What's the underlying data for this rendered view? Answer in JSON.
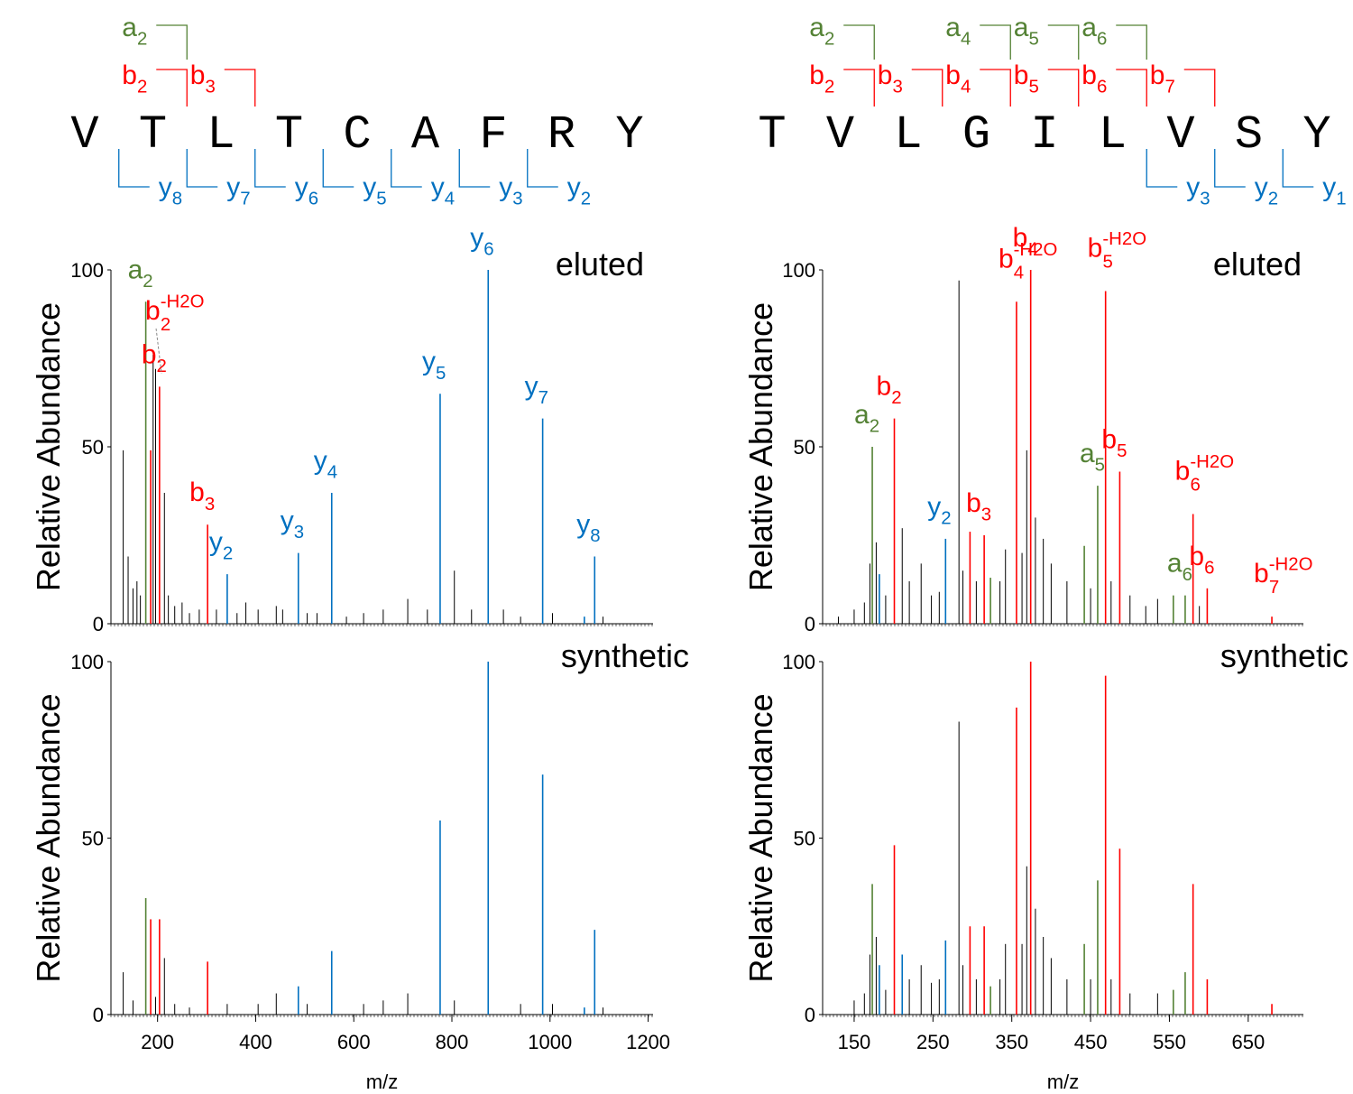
{
  "colors": {
    "a_ion": "#548235",
    "b_ion": "#ff0000",
    "y_ion": "#0070c0",
    "other_peak": "#000000",
    "axis": "#000000",
    "label": "#000000"
  },
  "panels": {
    "left": {
      "sequence": [
        "V",
        "T",
        "L",
        "T",
        "C",
        "A",
        "F",
        "R",
        "Y"
      ],
      "fragments": {
        "a": [
          {
            "sub": "2",
            "after": 2
          }
        ],
        "b": [
          {
            "sub": "2",
            "after": 2
          },
          {
            "sub": "3",
            "after": 3
          }
        ],
        "y": [
          {
            "sub": "8",
            "after": 1
          },
          {
            "sub": "7",
            "after": 2
          },
          {
            "sub": "6",
            "after": 3
          },
          {
            "sub": "5",
            "after": 4
          },
          {
            "sub": "4",
            "after": 5
          },
          {
            "sub": "3",
            "after": 6
          },
          {
            "sub": "2",
            "after": 7
          }
        ]
      }
    },
    "right": {
      "sequence": [
        "T",
        "V",
        "L",
        "G",
        "I",
        "L",
        "V",
        "S",
        "Y"
      ],
      "fragments": {
        "a": [
          {
            "sub": "2",
            "after": 2
          },
          {
            "sub": "4",
            "after": 4
          },
          {
            "sub": "5",
            "after": 5
          },
          {
            "sub": "6",
            "after": 6
          }
        ],
        "b": [
          {
            "sub": "2",
            "after": 2
          },
          {
            "sub": "3",
            "after": 3
          },
          {
            "sub": "4",
            "after": 4
          },
          {
            "sub": "5",
            "after": 5
          },
          {
            "sub": "6",
            "after": 6
          },
          {
            "sub": "7",
            "after": 7
          }
        ],
        "y": [
          {
            "sub": "3",
            "after": 6
          },
          {
            "sub": "2",
            "after": 7
          },
          {
            "sub": "1",
            "after": 8
          }
        ]
      }
    }
  },
  "chart_data": [
    {
      "type": "spectrum",
      "panel": "left",
      "title": "eluted",
      "ylabel": "Relative Abundance",
      "ylim": [
        0,
        100
      ],
      "yticks": [
        0,
        50,
        100
      ],
      "xlim": [
        105,
        1210
      ],
      "x_tick_labels": [],
      "peaks": [
        {
          "x": 130,
          "y": 49,
          "ion": "other"
        },
        {
          "x": 140,
          "y": 19,
          "ion": "other"
        },
        {
          "x": 150,
          "y": 10,
          "ion": "other"
        },
        {
          "x": 158,
          "y": 12,
          "ion": "other"
        },
        {
          "x": 165,
          "y": 8,
          "ion": "other"
        },
        {
          "x": 176,
          "y": 91,
          "ion": "a",
          "label": "a",
          "sub": "2"
        },
        {
          "x": 186,
          "y": 49,
          "ion": "b"
        },
        {
          "x": 191,
          "y": 76,
          "ion": "other"
        },
        {
          "x": 196,
          "y": 72,
          "ion": "other"
        },
        {
          "x": 204,
          "y": 67,
          "ion": "b",
          "label": "b",
          "sub": "2"
        },
        {
          "x": 214,
          "y": 37,
          "ion": "other"
        },
        {
          "x": 222,
          "y": 8,
          "ion": "other"
        },
        {
          "x": 235,
          "y": 5,
          "ion": "other"
        },
        {
          "x": 250,
          "y": 6,
          "ion": "other"
        },
        {
          "x": 265,
          "y": 3,
          "ion": "other"
        },
        {
          "x": 285,
          "y": 4,
          "ion": "other"
        },
        {
          "x": 302,
          "y": 28,
          "ion": "b",
          "label": "b",
          "sub": "3"
        },
        {
          "x": 320,
          "y": 4,
          "ion": "other"
        },
        {
          "x": 342,
          "y": 14,
          "ion": "y",
          "label": "y",
          "sub": "2"
        },
        {
          "x": 362,
          "y": 3,
          "ion": "other"
        },
        {
          "x": 380,
          "y": 6,
          "ion": "other"
        },
        {
          "x": 405,
          "y": 4,
          "ion": "other"
        },
        {
          "x": 442,
          "y": 5,
          "ion": "other"
        },
        {
          "x": 455,
          "y": 4,
          "ion": "other"
        },
        {
          "x": 487,
          "y": 20,
          "ion": "y",
          "label": "y",
          "sub": "3"
        },
        {
          "x": 505,
          "y": 3,
          "ion": "other"
        },
        {
          "x": 525,
          "y": 3,
          "ion": "other"
        },
        {
          "x": 555,
          "y": 37,
          "ion": "y",
          "label": "y",
          "sub": "4"
        },
        {
          "x": 585,
          "y": 2,
          "ion": "other"
        },
        {
          "x": 620,
          "y": 3,
          "ion": "other"
        },
        {
          "x": 660,
          "y": 4,
          "ion": "other"
        },
        {
          "x": 710,
          "y": 7,
          "ion": "other"
        },
        {
          "x": 750,
          "y": 4,
          "ion": "other"
        },
        {
          "x": 776,
          "y": 65,
          "ion": "y",
          "label": "y",
          "sub": "5"
        },
        {
          "x": 805,
          "y": 15,
          "ion": "other"
        },
        {
          "x": 840,
          "y": 4,
          "ion": "other"
        },
        {
          "x": 874,
          "y": 100,
          "ion": "y",
          "label": "y",
          "sub": "6"
        },
        {
          "x": 905,
          "y": 4,
          "ion": "other"
        },
        {
          "x": 940,
          "y": 2,
          "ion": "other"
        },
        {
          "x": 985,
          "y": 58,
          "ion": "y",
          "label": "y",
          "sub": "7"
        },
        {
          "x": 1005,
          "y": 3,
          "ion": "other"
        },
        {
          "x": 1070,
          "y": 2,
          "ion": "y"
        },
        {
          "x": 1091,
          "y": 19,
          "ion": "y",
          "label": "y",
          "sub": "8"
        },
        {
          "x": 1108,
          "y": 2,
          "ion": "other"
        }
      ],
      "annotations": [
        {
          "text": "b",
          "sub": "2",
          "sup": "-H2O",
          "ion": "b",
          "x": 186,
          "y": 86
        }
      ]
    },
    {
      "type": "spectrum",
      "panel": "left",
      "title": "synthetic",
      "ylabel": "Relative Abundance",
      "xlabel": "m/z",
      "ylim": [
        0,
        100
      ],
      "yticks": [
        0,
        50,
        100
      ],
      "xlim": [
        105,
        1210
      ],
      "x_tick_labels": [
        "200",
        "400",
        "600",
        "800",
        "1000",
        "1200"
      ],
      "peaks": [
        {
          "x": 130,
          "y": 12,
          "ion": "other"
        },
        {
          "x": 150,
          "y": 4,
          "ion": "other"
        },
        {
          "x": 176,
          "y": 33,
          "ion": "a"
        },
        {
          "x": 186,
          "y": 27,
          "ion": "b"
        },
        {
          "x": 196,
          "y": 5,
          "ion": "other"
        },
        {
          "x": 204,
          "y": 27,
          "ion": "b"
        },
        {
          "x": 214,
          "y": 16,
          "ion": "other"
        },
        {
          "x": 235,
          "y": 3,
          "ion": "other"
        },
        {
          "x": 265,
          "y": 2,
          "ion": "other"
        },
        {
          "x": 302,
          "y": 15,
          "ion": "b"
        },
        {
          "x": 342,
          "y": 3,
          "ion": "other"
        },
        {
          "x": 405,
          "y": 3,
          "ion": "other"
        },
        {
          "x": 442,
          "y": 6,
          "ion": "other"
        },
        {
          "x": 487,
          "y": 8,
          "ion": "y"
        },
        {
          "x": 505,
          "y": 3,
          "ion": "other"
        },
        {
          "x": 555,
          "y": 18,
          "ion": "y"
        },
        {
          "x": 620,
          "y": 3,
          "ion": "other"
        },
        {
          "x": 660,
          "y": 4,
          "ion": "other"
        },
        {
          "x": 710,
          "y": 6,
          "ion": "other"
        },
        {
          "x": 776,
          "y": 55,
          "ion": "y"
        },
        {
          "x": 805,
          "y": 4,
          "ion": "other"
        },
        {
          "x": 874,
          "y": 100,
          "ion": "y"
        },
        {
          "x": 940,
          "y": 3,
          "ion": "other"
        },
        {
          "x": 985,
          "y": 68,
          "ion": "y"
        },
        {
          "x": 1005,
          "y": 3,
          "ion": "other"
        },
        {
          "x": 1070,
          "y": 2,
          "ion": "y"
        },
        {
          "x": 1091,
          "y": 24,
          "ion": "y"
        },
        {
          "x": 1108,
          "y": 2,
          "ion": "other"
        }
      ],
      "annotations": []
    },
    {
      "type": "spectrum",
      "panel": "right",
      "title": "eluted",
      "ylabel": "Relative Abundance",
      "ylim": [
        0,
        100
      ],
      "yticks": [
        0,
        50,
        100
      ],
      "xlim": [
        110,
        720
      ],
      "x_tick_labels": [],
      "peaks": [
        {
          "x": 130,
          "y": 2,
          "ion": "other"
        },
        {
          "x": 150,
          "y": 4,
          "ion": "other"
        },
        {
          "x": 163,
          "y": 6,
          "ion": "other"
        },
        {
          "x": 170,
          "y": 17,
          "ion": "other"
        },
        {
          "x": 173,
          "y": 50,
          "ion": "a",
          "label": "a",
          "sub": "2"
        },
        {
          "x": 178,
          "y": 23,
          "ion": "other"
        },
        {
          "x": 182,
          "y": 14,
          "ion": "y"
        },
        {
          "x": 190,
          "y": 8,
          "ion": "other"
        },
        {
          "x": 201,
          "y": 58,
          "ion": "b",
          "label": "b",
          "sub": "2"
        },
        {
          "x": 211,
          "y": 27,
          "ion": "other"
        },
        {
          "x": 220,
          "y": 12,
          "ion": "other"
        },
        {
          "x": 235,
          "y": 17,
          "ion": "other"
        },
        {
          "x": 248,
          "y": 8,
          "ion": "other"
        },
        {
          "x": 258,
          "y": 9,
          "ion": "other"
        },
        {
          "x": 266,
          "y": 24,
          "ion": "y",
          "label": "y",
          "sub": "2"
        },
        {
          "x": 283,
          "y": 97,
          "ion": "other"
        },
        {
          "x": 288,
          "y": 15,
          "ion": "other"
        },
        {
          "x": 297,
          "y": 26,
          "ion": "b"
        },
        {
          "x": 305,
          "y": 12,
          "ion": "other"
        },
        {
          "x": 315,
          "y": 25,
          "ion": "b",
          "label": "b",
          "sub": "3"
        },
        {
          "x": 323,
          "y": 13,
          "ion": "a"
        },
        {
          "x": 335,
          "y": 12,
          "ion": "other"
        },
        {
          "x": 342,
          "y": 21,
          "ion": "other"
        },
        {
          "x": 356,
          "y": 91,
          "ion": "b",
          "label": "b",
          "sup": "-H2O",
          "sub": "4"
        },
        {
          "x": 363,
          "y": 20,
          "ion": "other"
        },
        {
          "x": 369,
          "y": 49,
          "ion": "other"
        },
        {
          "x": 374,
          "y": 100,
          "ion": "b",
          "label": "b",
          "sub": "4"
        },
        {
          "x": 380,
          "y": 30,
          "ion": "other"
        },
        {
          "x": 390,
          "y": 24,
          "ion": "other"
        },
        {
          "x": 400,
          "y": 17,
          "ion": "other"
        },
        {
          "x": 420,
          "y": 12,
          "ion": "other"
        },
        {
          "x": 442,
          "y": 22,
          "ion": "a"
        },
        {
          "x": 450,
          "y": 10,
          "ion": "other"
        },
        {
          "x": 459,
          "y": 39,
          "ion": "a",
          "label": "a",
          "sub": "5"
        },
        {
          "x": 469,
          "y": 94,
          "ion": "b",
          "label": "b",
          "sup": "-H2O",
          "sub": "5"
        },
        {
          "x": 476,
          "y": 12,
          "ion": "other"
        },
        {
          "x": 487,
          "y": 43,
          "ion": "b",
          "label": "b",
          "sub": "5"
        },
        {
          "x": 500,
          "y": 8,
          "ion": "other"
        },
        {
          "x": 520,
          "y": 5,
          "ion": "other"
        },
        {
          "x": 535,
          "y": 7,
          "ion": "other"
        },
        {
          "x": 555,
          "y": 8,
          "ion": "a"
        },
        {
          "x": 570,
          "y": 8,
          "ion": "a",
          "label": "a",
          "sub": "6"
        },
        {
          "x": 580,
          "y": 31,
          "ion": "b",
          "label": "b",
          "sup": "-H2O",
          "sub": "6"
        },
        {
          "x": 588,
          "y": 5,
          "ion": "other"
        },
        {
          "x": 598,
          "y": 10,
          "ion": "b",
          "label": "b",
          "sub": "6"
        },
        {
          "x": 680,
          "y": 2,
          "ion": "b",
          "label": "b",
          "sup": "-H2O",
          "sub": "7"
        }
      ],
      "annotations": []
    },
    {
      "type": "spectrum",
      "panel": "right",
      "title": "synthetic",
      "ylabel": "Relative Abundance",
      "xlabel": "m/z",
      "ylim": [
        0,
        100
      ],
      "yticks": [
        0,
        50,
        100
      ],
      "xlim": [
        110,
        720
      ],
      "x_tick_labels": [
        "150",
        "250",
        "350",
        "450",
        "550",
        "650"
      ],
      "peaks": [
        {
          "x": 150,
          "y": 4,
          "ion": "other"
        },
        {
          "x": 163,
          "y": 6,
          "ion": "other"
        },
        {
          "x": 170,
          "y": 17,
          "ion": "other"
        },
        {
          "x": 173,
          "y": 37,
          "ion": "a"
        },
        {
          "x": 178,
          "y": 22,
          "ion": "other"
        },
        {
          "x": 182,
          "y": 14,
          "ion": "y"
        },
        {
          "x": 190,
          "y": 7,
          "ion": "other"
        },
        {
          "x": 201,
          "y": 48,
          "ion": "b"
        },
        {
          "x": 211,
          "y": 17,
          "ion": "y"
        },
        {
          "x": 220,
          "y": 10,
          "ion": "other"
        },
        {
          "x": 235,
          "y": 14,
          "ion": "other"
        },
        {
          "x": 248,
          "y": 9,
          "ion": "other"
        },
        {
          "x": 258,
          "y": 10,
          "ion": "other"
        },
        {
          "x": 266,
          "y": 21,
          "ion": "y"
        },
        {
          "x": 283,
          "y": 83,
          "ion": "other"
        },
        {
          "x": 288,
          "y": 14,
          "ion": "other"
        },
        {
          "x": 297,
          "y": 25,
          "ion": "b"
        },
        {
          "x": 305,
          "y": 10,
          "ion": "other"
        },
        {
          "x": 315,
          "y": 25,
          "ion": "b"
        },
        {
          "x": 323,
          "y": 8,
          "ion": "a"
        },
        {
          "x": 335,
          "y": 10,
          "ion": "other"
        },
        {
          "x": 342,
          "y": 20,
          "ion": "other"
        },
        {
          "x": 356,
          "y": 87,
          "ion": "b"
        },
        {
          "x": 363,
          "y": 20,
          "ion": "other"
        },
        {
          "x": 369,
          "y": 42,
          "ion": "other"
        },
        {
          "x": 374,
          "y": 100,
          "ion": "b"
        },
        {
          "x": 380,
          "y": 30,
          "ion": "other"
        },
        {
          "x": 390,
          "y": 22,
          "ion": "other"
        },
        {
          "x": 400,
          "y": 16,
          "ion": "other"
        },
        {
          "x": 420,
          "y": 10,
          "ion": "other"
        },
        {
          "x": 442,
          "y": 20,
          "ion": "a"
        },
        {
          "x": 450,
          "y": 10,
          "ion": "other"
        },
        {
          "x": 459,
          "y": 38,
          "ion": "a"
        },
        {
          "x": 469,
          "y": 96,
          "ion": "b"
        },
        {
          "x": 476,
          "y": 10,
          "ion": "other"
        },
        {
          "x": 487,
          "y": 47,
          "ion": "b"
        },
        {
          "x": 500,
          "y": 6,
          "ion": "other"
        },
        {
          "x": 535,
          "y": 6,
          "ion": "other"
        },
        {
          "x": 555,
          "y": 7,
          "ion": "a"
        },
        {
          "x": 570,
          "y": 12,
          "ion": "a"
        },
        {
          "x": 580,
          "y": 37,
          "ion": "b"
        },
        {
          "x": 598,
          "y": 10,
          "ion": "b"
        },
        {
          "x": 680,
          "y": 3,
          "ion": "b"
        }
      ],
      "annotations": []
    }
  ]
}
